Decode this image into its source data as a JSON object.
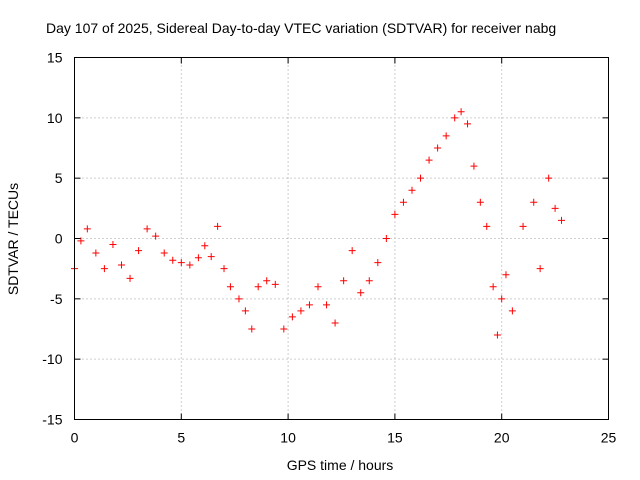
{
  "chart_data": {
    "type": "scatter",
    "title": "Day 107 of 2025, Sidereal Day-to-day VTEC variation (SDTVAR) for receiver nabg",
    "xlabel": "GPS time / hours",
    "ylabel": "SDTVAR / TECUs",
    "xlim": [
      0,
      25
    ],
    "ylim": [
      -15,
      15
    ],
    "xticks": [
      0,
      5,
      10,
      15,
      20,
      25
    ],
    "yticks": [
      -15,
      -10,
      -5,
      0,
      5,
      10,
      15
    ],
    "xtick_labels": [
      "0",
      "5",
      "10",
      "15",
      "20",
      "25"
    ],
    "ytick_labels": [
      "-15",
      "-10",
      "-5",
      "0",
      "5",
      "10",
      "15"
    ],
    "grid": true,
    "marker": "+",
    "color": "#ff0000",
    "series": [
      {
        "name": "SDTVAR nabg",
        "segments": [
          [
            0.0,
            -2.5
          ],
          [
            0.3,
            -0.2
          ],
          [
            0.6,
            0.8
          ],
          [
            1.0,
            -1.2
          ],
          [
            1.4,
            -2.5
          ],
          [
            1.8,
            -0.5
          ],
          [
            2.2,
            -2.2
          ],
          [
            2.6,
            -3.3
          ],
          [
            3.0,
            -1.0
          ],
          [
            3.4,
            0.8
          ],
          [
            3.8,
            0.2
          ],
          [
            4.2,
            -1.2
          ],
          [
            4.6,
            -1.8
          ],
          [
            5.0,
            -2.0
          ],
          [
            5.4,
            -2.2
          ],
          [
            5.8,
            -1.6
          ],
          [
            6.1,
            -0.6
          ],
          [
            6.4,
            -1.5
          ],
          [
            6.7,
            1.0
          ],
          [
            7.0,
            -2.5
          ],
          [
            7.3,
            -4.0
          ],
          [
            7.7,
            -5.0
          ],
          [
            8.0,
            -6.0
          ],
          [
            8.3,
            -7.5
          ],
          [
            8.6,
            -4.0
          ],
          [
            9.0,
            -3.5
          ],
          [
            9.4,
            -3.8
          ],
          [
            9.8,
            -7.5
          ],
          [
            10.2,
            -6.5
          ],
          [
            10.6,
            -6.0
          ],
          [
            11.0,
            -5.5
          ],
          [
            11.4,
            -4.0
          ],
          [
            11.8,
            -5.5
          ],
          [
            12.2,
            -7.0
          ],
          [
            12.6,
            -3.5
          ],
          [
            13.0,
            -1.0
          ],
          [
            13.4,
            -4.5
          ],
          [
            13.8,
            -3.5
          ],
          [
            14.2,
            -2.0
          ],
          [
            14.6,
            0.0
          ],
          [
            15.0,
            2.0
          ],
          [
            15.4,
            3.0
          ],
          [
            15.8,
            4.0
          ],
          [
            16.2,
            5.0
          ],
          [
            16.6,
            6.5
          ],
          [
            17.0,
            7.5
          ],
          [
            17.4,
            8.5
          ],
          [
            17.8,
            10.0
          ],
          [
            18.1,
            10.5
          ],
          [
            18.4,
            9.5
          ],
          [
            18.7,
            6.0
          ],
          [
            19.0,
            3.0
          ],
          [
            19.3,
            1.0
          ],
          [
            19.6,
            -4.0
          ],
          [
            19.8,
            -8.0
          ],
          [
            20.0,
            -5.0
          ],
          [
            20.2,
            -3.0
          ],
          [
            20.5,
            -6.0
          ],
          [
            21.0,
            1.0
          ],
          [
            21.5,
            3.0
          ],
          [
            21.8,
            -2.5
          ],
          [
            22.2,
            5.0
          ],
          [
            22.5,
            2.5
          ],
          [
            22.8,
            1.5
          ]
        ]
      }
    ]
  }
}
